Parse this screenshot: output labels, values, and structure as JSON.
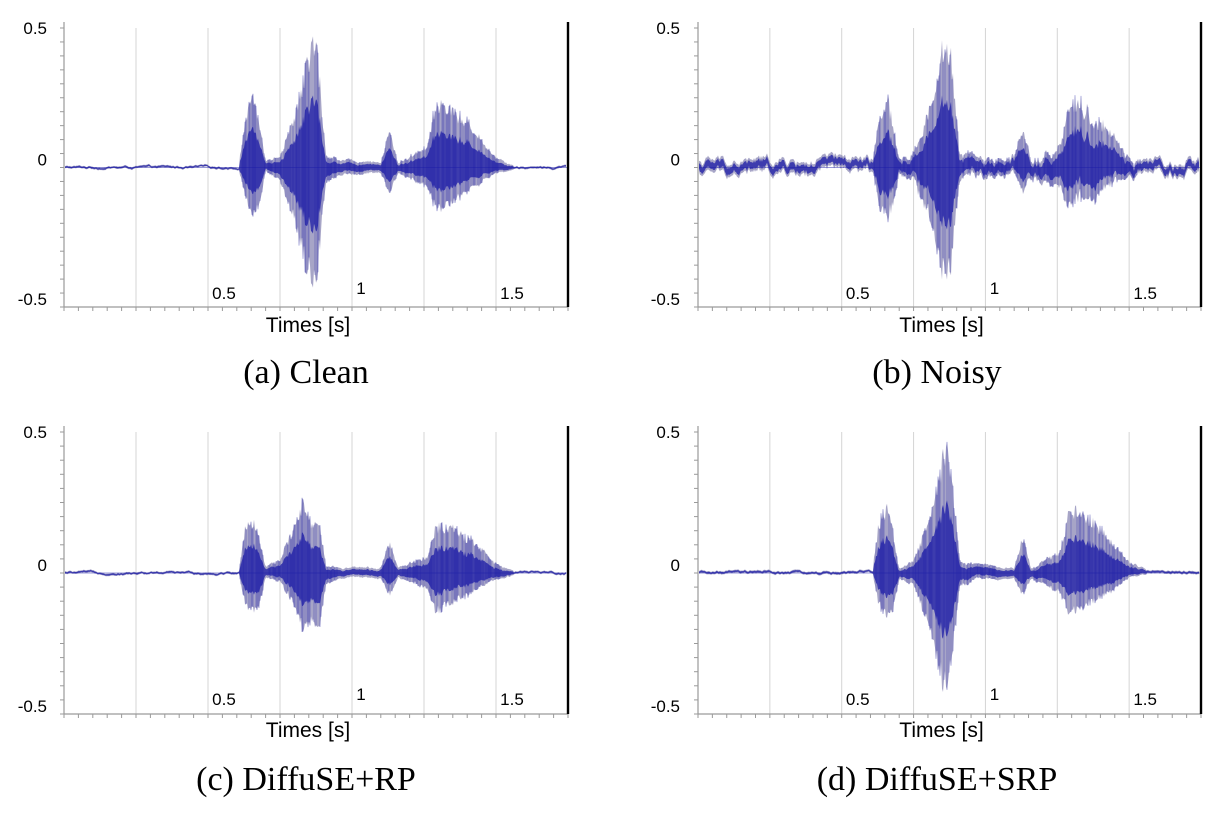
{
  "chart_data": [
    {
      "type": "area",
      "caption": "(a)  Clean",
      "xlabel": "Times [s]",
      "ylabel": "",
      "xlim": [
        0,
        1.75
      ],
      "ylim": [
        -0.5,
        0.5
      ],
      "xticks": [
        "0.5",
        "1",
        "1.5"
      ],
      "yticks": [
        "0.5",
        "0",
        "-0.5"
      ],
      "noise_floor": 0.005,
      "series": [
        {
          "envelope": [
            {
              "t": 0.61,
              "max": 0.04,
              "min": -0.02
            },
            {
              "t": 0.63,
              "max": 0.2,
              "min": -0.13
            },
            {
              "t": 0.66,
              "max": 0.28,
              "min": -0.19
            },
            {
              "t": 0.68,
              "max": 0.15,
              "min": -0.14
            },
            {
              "t": 0.7,
              "max": 0.02,
              "min": -0.02
            },
            {
              "t": 0.75,
              "max": 0.05,
              "min": -0.05
            },
            {
              "t": 0.8,
              "max": 0.2,
              "min": -0.2
            },
            {
              "t": 0.84,
              "max": 0.4,
              "min": -0.4
            },
            {
              "t": 0.86,
              "max": 0.5,
              "min": -0.46
            },
            {
              "t": 0.88,
              "max": 0.45,
              "min": -0.4
            },
            {
              "t": 0.91,
              "max": 0.05,
              "min": -0.05
            },
            {
              "t": 0.97,
              "max": 0.03,
              "min": -0.03
            },
            {
              "t": 1.1,
              "max": 0.02,
              "min": -0.02
            },
            {
              "t": 1.13,
              "max": 0.15,
              "min": -0.1
            },
            {
              "t": 1.16,
              "max": 0.02,
              "min": -0.02
            },
            {
              "t": 1.26,
              "max": 0.08,
              "min": -0.08
            },
            {
              "t": 1.29,
              "max": 0.25,
              "min": -0.17
            },
            {
              "t": 1.34,
              "max": 0.24,
              "min": -0.14
            },
            {
              "t": 1.4,
              "max": 0.18,
              "min": -0.1
            },
            {
              "t": 1.45,
              "max": 0.11,
              "min": -0.06
            },
            {
              "t": 1.5,
              "max": 0.04,
              "min": -0.02
            },
            {
              "t": 1.56,
              "max": 0.01,
              "min": -0.01
            }
          ]
        }
      ]
    },
    {
      "type": "area",
      "caption": "(b)  Noisy",
      "xlabel": "Times [s]",
      "ylabel": "",
      "xlim": [
        0,
        1.75
      ],
      "ylim": [
        -0.5,
        0.5
      ],
      "xticks": [
        "0.5",
        "1",
        "1.5"
      ],
      "yticks": [
        "0.5",
        "0",
        "-0.5"
      ],
      "noise_floor": 0.025,
      "series": [
        {
          "envelope": [
            {
              "t": 0.61,
              "max": 0.05,
              "min": -0.03
            },
            {
              "t": 0.63,
              "max": 0.2,
              "min": -0.13
            },
            {
              "t": 0.66,
              "max": 0.29,
              "min": -0.19
            },
            {
              "t": 0.68,
              "max": 0.15,
              "min": -0.14
            },
            {
              "t": 0.7,
              "max": 0.03,
              "min": -0.03
            },
            {
              "t": 0.75,
              "max": 0.05,
              "min": -0.05
            },
            {
              "t": 0.8,
              "max": 0.2,
              "min": -0.2
            },
            {
              "t": 0.84,
              "max": 0.4,
              "min": -0.4
            },
            {
              "t": 0.86,
              "max": 0.5,
              "min": -0.45
            },
            {
              "t": 0.88,
              "max": 0.45,
              "min": -0.4
            },
            {
              "t": 0.91,
              "max": 0.05,
              "min": -0.05
            },
            {
              "t": 0.97,
              "max": 0.04,
              "min": -0.04
            },
            {
              "t": 1.1,
              "max": 0.03,
              "min": -0.03
            },
            {
              "t": 1.13,
              "max": 0.15,
              "min": -0.1
            },
            {
              "t": 1.16,
              "max": 0.03,
              "min": -0.03
            },
            {
              "t": 1.26,
              "max": 0.08,
              "min": -0.08
            },
            {
              "t": 1.29,
              "max": 0.25,
              "min": -0.15
            },
            {
              "t": 1.34,
              "max": 0.24,
              "min": -0.14
            },
            {
              "t": 1.4,
              "max": 0.18,
              "min": -0.1
            },
            {
              "t": 1.45,
              "max": 0.11,
              "min": -0.06
            },
            {
              "t": 1.5,
              "max": 0.04,
              "min": -0.03
            },
            {
              "t": 1.56,
              "max": 0.02,
              "min": -0.02
            }
          ]
        }
      ]
    },
    {
      "type": "area",
      "caption": "(c)  DiffuSE+RP",
      "xlabel": "Times [s]",
      "ylabel": "",
      "xlim": [
        0,
        1.75
      ],
      "ylim": [
        -0.5,
        0.5
      ],
      "xticks": [
        "0.5",
        "1",
        "1.5"
      ],
      "yticks": [
        "0.5",
        "0",
        "-0.5"
      ],
      "noise_floor": 0.005,
      "series": [
        {
          "envelope": [
            {
              "t": 0.61,
              "max": 0.03,
              "min": -0.02
            },
            {
              "t": 0.63,
              "max": 0.18,
              "min": -0.12
            },
            {
              "t": 0.66,
              "max": 0.21,
              "min": -0.16
            },
            {
              "t": 0.68,
              "max": 0.13,
              "min": -0.12
            },
            {
              "t": 0.7,
              "max": 0.02,
              "min": -0.02
            },
            {
              "t": 0.75,
              "max": 0.05,
              "min": -0.04
            },
            {
              "t": 0.8,
              "max": 0.18,
              "min": -0.12
            },
            {
              "t": 0.83,
              "max": 0.29,
              "min": -0.22
            },
            {
              "t": 0.86,
              "max": 0.2,
              "min": -0.18
            },
            {
              "t": 0.88,
              "max": 0.24,
              "min": -0.25
            },
            {
              "t": 0.91,
              "max": 0.03,
              "min": -0.04
            },
            {
              "t": 0.97,
              "max": 0.02,
              "min": -0.02
            },
            {
              "t": 1.1,
              "max": 0.02,
              "min": -0.02
            },
            {
              "t": 1.13,
              "max": 0.12,
              "min": -0.09
            },
            {
              "t": 1.16,
              "max": 0.02,
              "min": -0.02
            },
            {
              "t": 1.26,
              "max": 0.06,
              "min": -0.06
            },
            {
              "t": 1.29,
              "max": 0.19,
              "min": -0.15
            },
            {
              "t": 1.34,
              "max": 0.18,
              "min": -0.12
            },
            {
              "t": 1.4,
              "max": 0.14,
              "min": -0.09
            },
            {
              "t": 1.45,
              "max": 0.1,
              "min": -0.05
            },
            {
              "t": 1.5,
              "max": 0.04,
              "min": -0.02
            },
            {
              "t": 1.56,
              "max": 0.01,
              "min": -0.01
            }
          ]
        }
      ]
    },
    {
      "type": "area",
      "caption": "(d)  DiffuSE+SRP",
      "xlabel": "Times [s]",
      "ylabel": "",
      "xlim": [
        0,
        1.75
      ],
      "ylim": [
        -0.5,
        0.5
      ],
      "xticks": [
        "0.5",
        "1",
        "1.5"
      ],
      "yticks": [
        "0.5",
        "0",
        "-0.5"
      ],
      "noise_floor": 0.006,
      "series": [
        {
          "envelope": [
            {
              "t": 0.61,
              "max": 0.04,
              "min": -0.02
            },
            {
              "t": 0.63,
              "max": 0.2,
              "min": -0.13
            },
            {
              "t": 0.66,
              "max": 0.27,
              "min": -0.17
            },
            {
              "t": 0.68,
              "max": 0.15,
              "min": -0.14
            },
            {
              "t": 0.7,
              "max": 0.02,
              "min": -0.02
            },
            {
              "t": 0.75,
              "max": 0.05,
              "min": -0.05
            },
            {
              "t": 0.8,
              "max": 0.2,
              "min": -0.2
            },
            {
              "t": 0.84,
              "max": 0.4,
              "min": -0.4
            },
            {
              "t": 0.86,
              "max": 0.48,
              "min": -0.44
            },
            {
              "t": 0.88,
              "max": 0.43,
              "min": -0.38
            },
            {
              "t": 0.91,
              "max": 0.05,
              "min": -0.05
            },
            {
              "t": 0.97,
              "max": 0.03,
              "min": -0.03
            },
            {
              "t": 1.1,
              "max": 0.02,
              "min": -0.02
            },
            {
              "t": 1.13,
              "max": 0.14,
              "min": -0.09
            },
            {
              "t": 1.16,
              "max": 0.02,
              "min": -0.02
            },
            {
              "t": 1.26,
              "max": 0.08,
              "min": -0.08
            },
            {
              "t": 1.29,
              "max": 0.24,
              "min": -0.16
            },
            {
              "t": 1.34,
              "max": 0.23,
              "min": -0.14
            },
            {
              "t": 1.4,
              "max": 0.18,
              "min": -0.1
            },
            {
              "t": 1.45,
              "max": 0.11,
              "min": -0.06
            },
            {
              "t": 1.5,
              "max": 0.04,
              "min": -0.02
            },
            {
              "t": 1.56,
              "max": 0.01,
              "min": -0.01
            }
          ]
        }
      ]
    }
  ],
  "colors": {
    "wave_dark": "#1a1aa6",
    "wave_light": "#8a87b4",
    "grid": "#d4d4d4",
    "axis": "#9a9a9a",
    "right_border": "#000000"
  }
}
